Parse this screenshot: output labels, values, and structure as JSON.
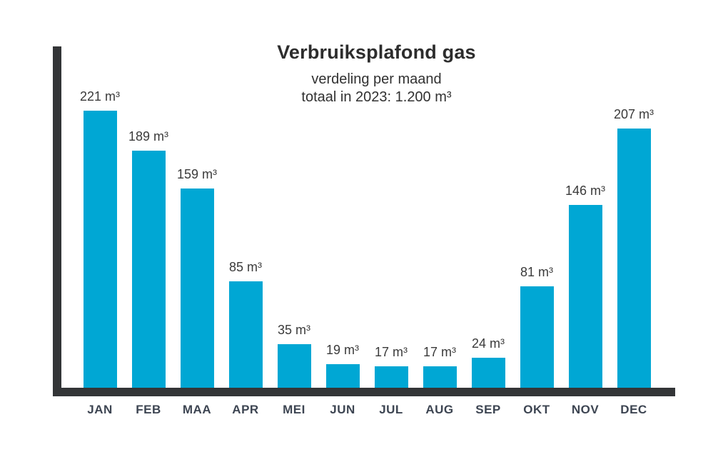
{
  "chart_data": {
    "type": "bar",
    "title": "Verbruiksplafond gas",
    "subtitle_lines": [
      "verdeling per maand",
      "totaal in 2023: 1.200 m³"
    ],
    "categories": [
      "JAN",
      "FEB",
      "MAA",
      "APR",
      "MEI",
      "JUN",
      "JUL",
      "AUG",
      "SEP",
      "OKT",
      "NOV",
      "DEC"
    ],
    "values": [
      221,
      189,
      159,
      85,
      35,
      19,
      17,
      17,
      24,
      81,
      146,
      207
    ],
    "value_labels": [
      "221 m³",
      "189 m³",
      "159 m³",
      "85 m³",
      "35 m³",
      "19 m³",
      "17 m³",
      "17 m³",
      "24 m³",
      "81 m³",
      "146 m³",
      "207 m³"
    ],
    "unit": "m³",
    "total": "1.200 m³",
    "year": "2023",
    "xlabel": "",
    "ylabel": "",
    "ylim": [
      0,
      240
    ],
    "grid": false,
    "legend": false,
    "bar_color": "#00a7d4",
    "axis_color": "#333537",
    "label_color": "#3a3a3a",
    "month_label_color": "#3d4552"
  }
}
